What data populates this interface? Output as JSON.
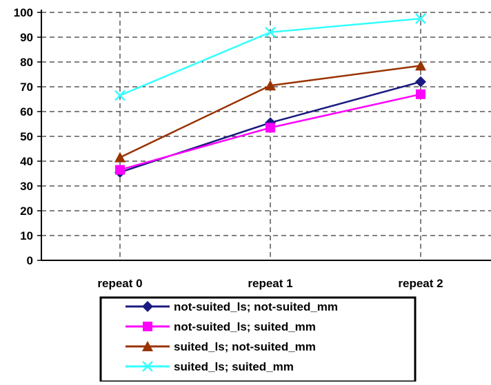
{
  "chart_data": {
    "type": "line",
    "categories": [
      "repeat 0",
      "repeat 1",
      "repeat 2"
    ],
    "ylim": [
      0,
      100
    ],
    "yticks": [
      0,
      10,
      20,
      30,
      40,
      50,
      60,
      70,
      80,
      90,
      100
    ],
    "grid": true,
    "legend_position": "bottom",
    "series": [
      {
        "name": "not-suited_ls; not-suited_mm",
        "values": [
          35.5,
          55.5,
          72
        ],
        "color": "#1a1a80",
        "marker": "diamond"
      },
      {
        "name": "not-suited_ls; suited_mm",
        "values": [
          36.5,
          53.5,
          67
        ],
        "color": "#ff00ff",
        "marker": "square"
      },
      {
        "name": "suited_ls; not-suited_mm",
        "values": [
          41.5,
          70.5,
          78.5
        ],
        "color": "#993300",
        "marker": "triangle"
      },
      {
        "name": "suited_ls; suited_mm",
        "values": [
          66.5,
          92,
          97.5
        ],
        "color": "#33ffff",
        "marker": "x"
      }
    ]
  }
}
